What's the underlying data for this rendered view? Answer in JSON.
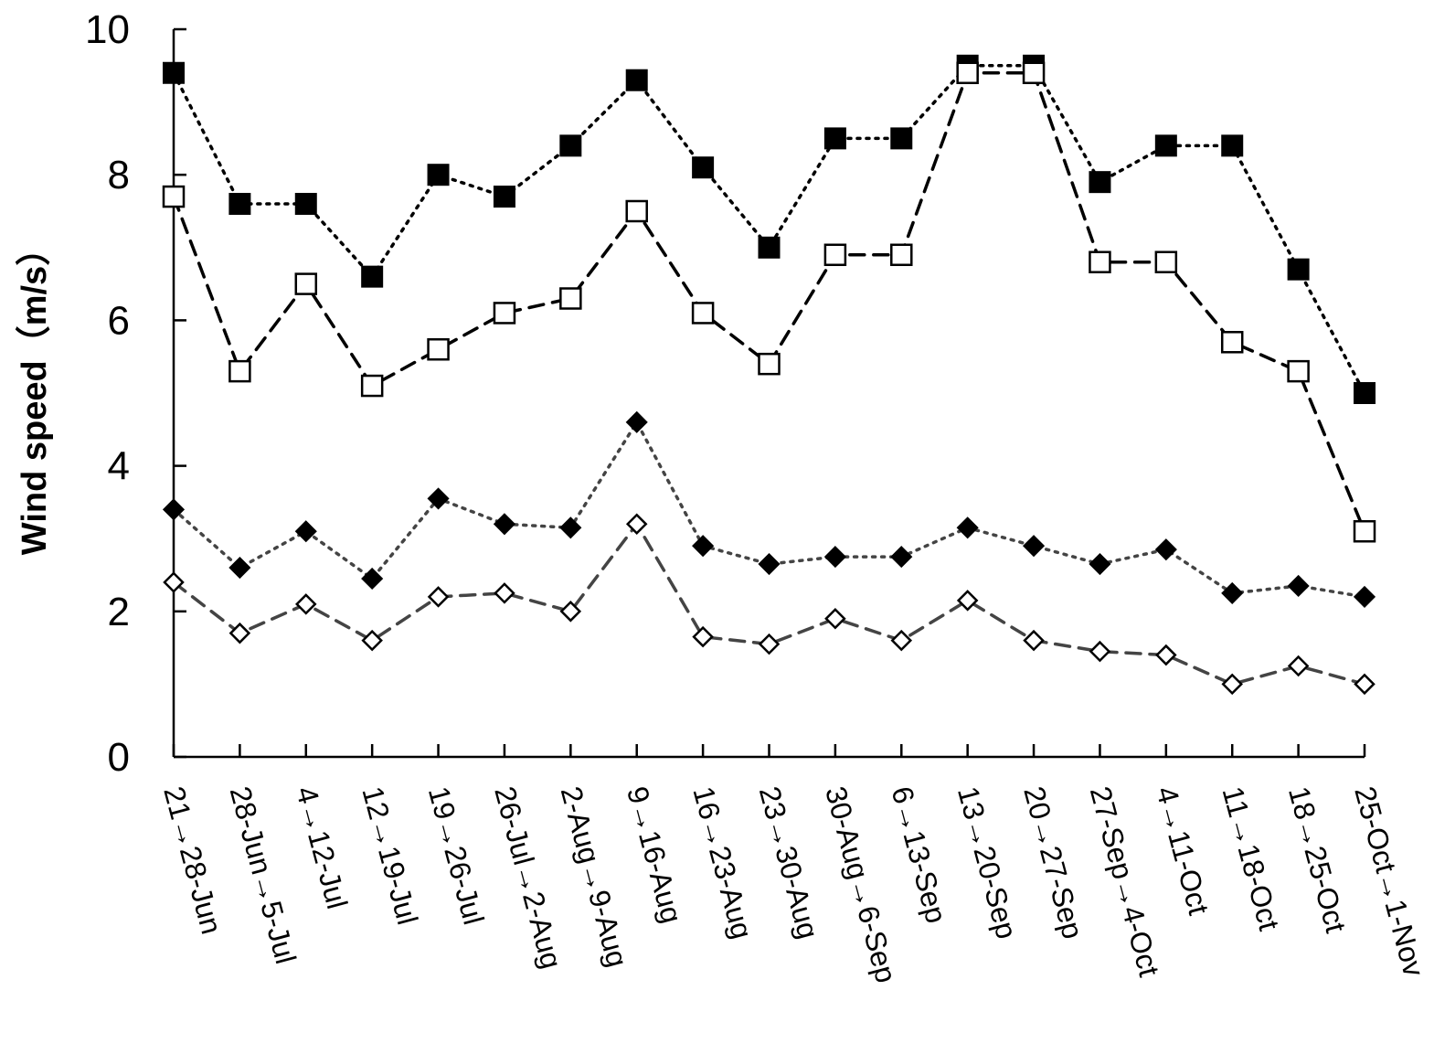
{
  "chart_data": {
    "type": "line",
    "title": "",
    "xlabel": "",
    "ylabel": "Wind speed（m/s）",
    "ylim": [
      0,
      10
    ],
    "yticks": [
      0,
      2,
      4,
      6,
      8,
      10
    ],
    "grid": false,
    "legend": "none",
    "categories": [
      "21→28-Jun",
      "28-Jun→5-Jul",
      "4→12-Jul",
      "12→19-Jul",
      "19→26-Jul",
      "26-Jul→2-Aug",
      "2-Aug→9-Aug",
      "9→16-Aug",
      "16→23-Aug",
      "23→30-Aug",
      "30-Aug→6-Sep",
      "6→13-Sep",
      "13→20-Sep",
      "20→27-Sep",
      "27-Sep→4-Oct",
      "4→11-Oct",
      "11→18-Oct",
      "18→25-Oct",
      "25-Oct→1-Nov"
    ],
    "series": [
      {
        "marker": "filled-square",
        "line": "dotted",
        "color": "#000000",
        "values": [
          9.4,
          7.6,
          7.6,
          6.6,
          8.0,
          7.7,
          8.4,
          9.3,
          8.1,
          7.0,
          8.5,
          8.5,
          9.5,
          9.5,
          7.9,
          8.4,
          8.4,
          6.7,
          5.0
        ]
      },
      {
        "marker": "open-square",
        "line": "dashed",
        "color": "#000000",
        "values": [
          7.7,
          5.3,
          6.5,
          5.1,
          5.6,
          6.1,
          6.3,
          7.5,
          6.1,
          5.4,
          6.9,
          6.9,
          9.4,
          9.4,
          6.8,
          6.8,
          5.7,
          5.3,
          3.1
        ]
      },
      {
        "marker": "filled-diamond",
        "line": "dotted",
        "color": "#444444",
        "values": [
          3.4,
          2.6,
          3.1,
          2.45,
          3.55,
          3.2,
          3.15,
          4.6,
          2.9,
          2.65,
          2.75,
          2.75,
          3.15,
          2.9,
          2.65,
          2.85,
          2.25,
          2.35,
          2.2
        ]
      },
      {
        "marker": "open-diamond",
        "line": "dashed",
        "color": "#444444",
        "values": [
          2.4,
          1.7,
          2.1,
          1.6,
          2.2,
          2.25,
          2.0,
          3.2,
          1.65,
          1.55,
          1.9,
          1.6,
          2.15,
          1.6,
          1.45,
          1.4,
          1.0,
          1.25,
          1.0
        ]
      }
    ]
  }
}
